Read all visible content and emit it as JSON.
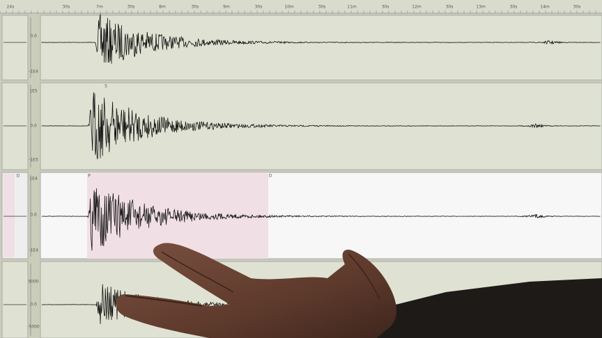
{
  "time_axis": {
    "labels": [
      "24s",
      "30s",
      "7m",
      "30s",
      "8m",
      "30s",
      "9m",
      "30s",
      "10m",
      "30s",
      "11m",
      "30s",
      "12m",
      "30s",
      "13m",
      "30s",
      "14m",
      "30s"
    ]
  },
  "panels": [
    {
      "scale_labels": [
        "0.0",
        "-1E4"
      ],
      "phase_labels": []
    },
    {
      "scale_labels": [
        "1E5",
        "0.0",
        "-1E5"
      ],
      "phase_labels": [
        "S"
      ]
    },
    {
      "scale_labels": [
        "1E4",
        "0.0",
        "-1E4"
      ],
      "phase_labels": [
        "P",
        "D",
        "D"
      ]
    },
    {
      "scale_labels": [
        "5000",
        "0.0",
        "-5000"
      ],
      "phase_labels": []
    }
  ]
}
